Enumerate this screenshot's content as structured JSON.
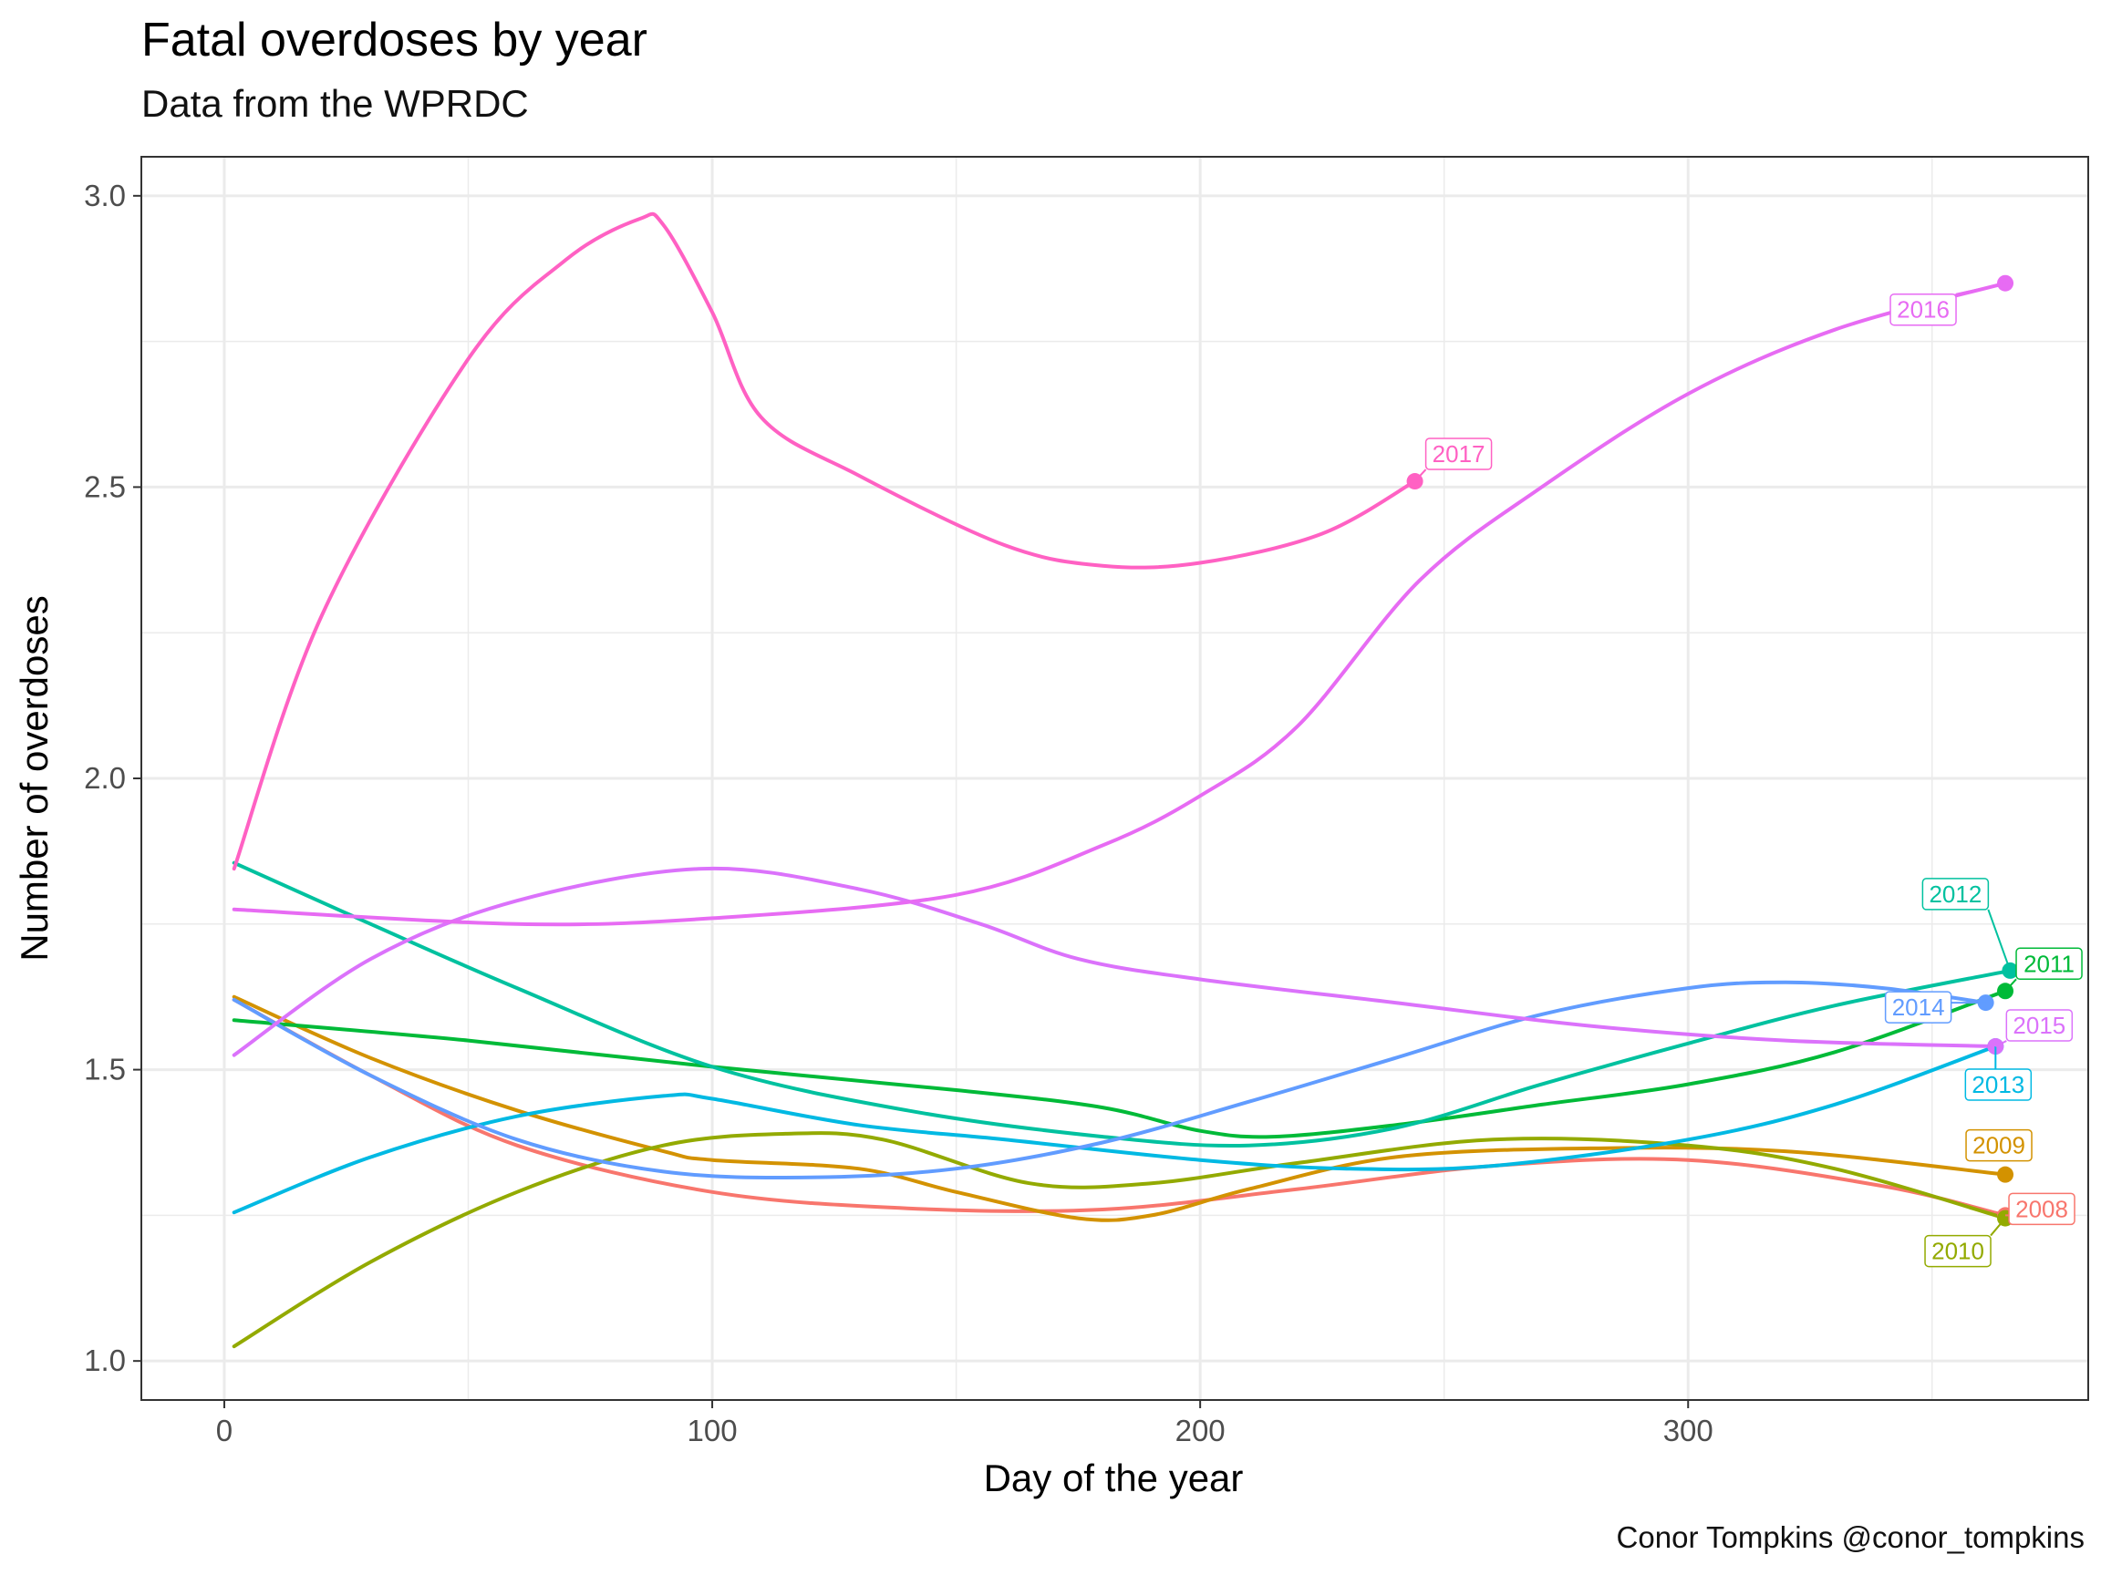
{
  "title": "Fatal overdoses by year",
  "subtitle": "Data from the WPRDC",
  "caption": "Conor Tompkins @conor_tompkins",
  "chart_data": {
    "type": "line",
    "title": "Fatal overdoses by year",
    "subtitle": "Data from the WPRDC",
    "xlabel": "Day of the year",
    "ylabel": "Number of overdoses",
    "xlim": [
      -17,
      382
    ],
    "ylim": [
      0.933,
      3.067
    ],
    "x_ticks": [
      0,
      100,
      200,
      300
    ],
    "x_tick_labels": [
      "0",
      "100",
      "200",
      "300"
    ],
    "y_ticks": [
      1.0,
      1.5,
      2.0,
      2.5,
      3.0
    ],
    "y_tick_labels": [
      "1.0",
      "1.5",
      "2.0",
      "2.5",
      "3.0"
    ],
    "grid": true,
    "legend": "none (direct labels at line ends)",
    "series": [
      {
        "name": "2008",
        "color": "#F8766D",
        "x": [
          2,
          30,
          60,
          100,
          140,
          180,
          220,
          260,
          300,
          340,
          365
        ],
        "y": [
          1.62,
          1.49,
          1.37,
          1.29,
          1.262,
          1.26,
          1.295,
          1.335,
          1.345,
          1.3,
          1.25
        ]
      },
      {
        "name": "2009",
        "color": "#D39200",
        "x": [
          2,
          30,
          60,
          90,
          100,
          130,
          150,
          175,
          190,
          210,
          240,
          280,
          320,
          365
        ],
        "y": [
          1.625,
          1.52,
          1.43,
          1.36,
          1.345,
          1.33,
          1.29,
          1.245,
          1.25,
          1.295,
          1.35,
          1.365,
          1.36,
          1.32
        ]
      },
      {
        "name": "2010",
        "color": "#93AA00",
        "x": [
          2,
          30,
          60,
          90,
          115,
          135,
          165,
          190,
          220,
          260,
          300,
          330,
          365
        ],
        "y": [
          1.025,
          1.17,
          1.29,
          1.37,
          1.39,
          1.38,
          1.305,
          1.305,
          1.34,
          1.38,
          1.37,
          1.33,
          1.245
        ]
      },
      {
        "name": "2011",
        "color": "#00BA38",
        "x": [
          2,
          50,
          100,
          150,
          180,
          200,
          215,
          240,
          270,
          300,
          330,
          365
        ],
        "y": [
          1.585,
          1.55,
          1.505,
          1.465,
          1.435,
          1.395,
          1.385,
          1.405,
          1.44,
          1.475,
          1.53,
          1.635
        ]
      },
      {
        "name": "2012",
        "color": "#00C19F",
        "x": [
          2,
          30,
          60,
          100,
          140,
          180,
          210,
          240,
          270,
          300,
          330,
          366
        ],
        "y": [
          1.855,
          1.75,
          1.64,
          1.505,
          1.43,
          1.385,
          1.37,
          1.4,
          1.475,
          1.545,
          1.61,
          1.67
        ]
      },
      {
        "name": "2013",
        "color": "#00B9E3",
        "x": [
          2,
          30,
          60,
          90,
          100,
          130,
          160,
          200,
          230,
          260,
          300,
          330,
          363
        ],
        "y": [
          1.255,
          1.35,
          1.42,
          1.455,
          1.45,
          1.405,
          1.38,
          1.345,
          1.33,
          1.335,
          1.38,
          1.44,
          1.54
        ]
      },
      {
        "name": "2014",
        "color": "#619CFF",
        "x": [
          2,
          30,
          60,
          90,
          120,
          150,
          180,
          210,
          240,
          270,
          300,
          320,
          340,
          361
        ],
        "y": [
          1.62,
          1.49,
          1.38,
          1.325,
          1.315,
          1.33,
          1.375,
          1.445,
          1.52,
          1.595,
          1.64,
          1.65,
          1.64,
          1.615
        ]
      },
      {
        "name": "2015",
        "color": "#DB72FB",
        "x": [
          2,
          30,
          60,
          98,
          130,
          155,
          175,
          200,
          240,
          280,
          320,
          363
        ],
        "y": [
          1.525,
          1.69,
          1.79,
          1.845,
          1.81,
          1.75,
          1.69,
          1.655,
          1.615,
          1.575,
          1.55,
          1.54
        ]
      },
      {
        "name": "2016",
        "color": "#E76BF3",
        "x": [
          2,
          60,
          100,
          150,
          180,
          200,
          220,
          245,
          270,
          300,
          330,
          365
        ],
        "y": [
          1.775,
          1.75,
          1.76,
          1.8,
          1.885,
          1.97,
          2.09,
          2.34,
          2.5,
          2.66,
          2.77,
          2.85
        ]
      },
      {
        "name": "2017",
        "color": "#FF61C3",
        "x": [
          2,
          20,
          50,
          70,
          85,
          90,
          100,
          110,
          130,
          160,
          180,
          200,
          225,
          244
        ],
        "y": [
          1.845,
          2.28,
          2.72,
          2.89,
          2.96,
          2.95,
          2.8,
          2.62,
          2.52,
          2.4,
          2.365,
          2.37,
          2.42,
          2.51
        ]
      }
    ],
    "end_labels": [
      {
        "text": "2008",
        "color": "#F8766D"
      },
      {
        "text": "2009",
        "color": "#D39200"
      },
      {
        "text": "2010",
        "color": "#93AA00"
      },
      {
        "text": "2011",
        "color": "#00BA38"
      },
      {
        "text": "2012",
        "color": "#00C19F"
      },
      {
        "text": "2013",
        "color": "#00B9E3"
      },
      {
        "text": "2014",
        "color": "#619CFF"
      },
      {
        "text": "2015",
        "color": "#DB72FB"
      },
      {
        "text": "2016",
        "color": "#E76BF3"
      },
      {
        "text": "2017",
        "color": "#FF61C3"
      }
    ]
  }
}
